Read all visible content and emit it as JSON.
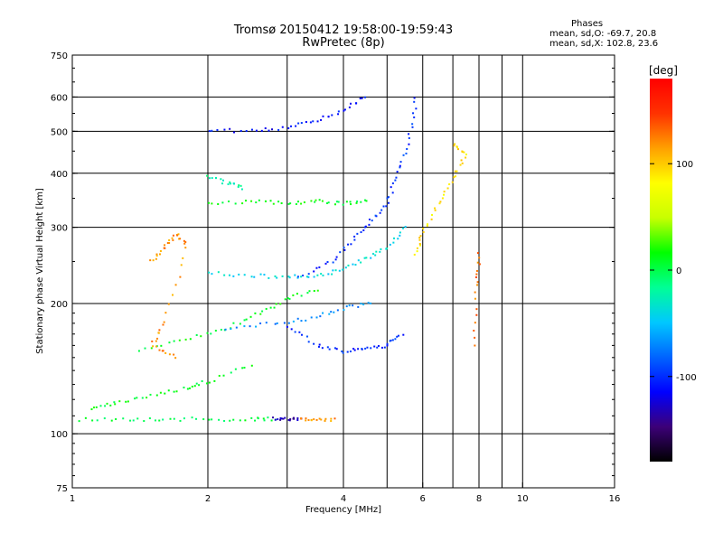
{
  "header": {
    "title_line1": "Tromsø 20150412 19:58:00-19:59:43",
    "title_line2": "RwPretec (8p)"
  },
  "phases": {
    "heading": "Phases",
    "o_line": "mean, sd,O: -69.7, 20.8",
    "x_line": "mean, sd,X: 102.8, 23.6"
  },
  "chart_data": {
    "type": "scatter",
    "xlabel": "Frequency [MHz]",
    "ylabel": "Stationary phase Virtual Height [km]",
    "xscale": "log",
    "yscale": "log",
    "xlim": [
      1,
      16
    ],
    "ylim": [
      75,
      750
    ],
    "x_ticks": [
      1,
      2,
      4,
      6,
      8,
      10,
      16
    ],
    "x_minor_ticks": [
      3,
      5,
      7,
      9
    ],
    "y_ticks": [
      75,
      100,
      200,
      300,
      400,
      500,
      600,
      750
    ],
    "grid": true,
    "colorbar": {
      "label": "[deg]",
      "range": [
        -180,
        180
      ],
      "ticks": [
        100,
        0,
        -100
      ],
      "colors": [
        "#000000",
        "#3c0078",
        "#0000ff",
        "#0064ff",
        "#00c8ff",
        "#00ff96",
        "#00ff00",
        "#c8ff00",
        "#ffff00",
        "#ffa000",
        "#ff3200",
        "#ff0000"
      ]
    },
    "traces": [
      {
        "name": "",
        "phase": 0,
        "points": [
          [
            1.0,
            108
          ],
          [
            1.3,
            108
          ],
          [
            1.6,
            108
          ],
          [
            2.0,
            108
          ],
          [
            2.5,
            108
          ],
          [
            2.8,
            108
          ]
        ]
      },
      {
        "name": "",
        "phase": -130,
        "points": [
          [
            2.8,
            108
          ],
          [
            3.0,
            108
          ],
          [
            3.2,
            108
          ]
        ]
      },
      {
        "name": "",
        "phase": 120,
        "points": [
          [
            3.2,
            108
          ],
          [
            3.5,
            108
          ],
          [
            3.8,
            108
          ]
        ]
      },
      {
        "name": "",
        "phase": 10,
        "points": [
          [
            1.1,
            115
          ],
          [
            1.25,
            118
          ],
          [
            1.5,
            122
          ],
          [
            1.8,
            128
          ],
          [
            2.0,
            132
          ],
          [
            2.5,
            145
          ]
        ]
      },
      {
        "name": "",
        "phase": 10,
        "points": [
          [
            1.4,
            155
          ],
          [
            1.8,
            165
          ],
          [
            2.2,
            175
          ],
          [
            2.6,
            190
          ],
          [
            3.0,
            205
          ],
          [
            3.5,
            215
          ]
        ]
      },
      {
        "name": "",
        "phase": -40,
        "points": [
          [
            2.0,
            235
          ],
          [
            2.5,
            232
          ],
          [
            3.0,
            230
          ],
          [
            3.5,
            232
          ],
          [
            4.0,
            240
          ],
          [
            4.5,
            255
          ],
          [
            5.0,
            270
          ],
          [
            5.5,
            300
          ]
        ]
      },
      {
        "name": "",
        "phase": -100,
        "points": [
          [
            3.0,
            178
          ],
          [
            3.5,
            160
          ],
          [
            4.0,
            155
          ],
          [
            4.5,
            157
          ],
          [
            5.0,
            160
          ],
          [
            5.4,
            170
          ]
        ]
      },
      {
        "name": "",
        "phase": -100,
        "points": [
          [
            3.2,
            230
          ],
          [
            3.8,
            250
          ],
          [
            4.2,
            280
          ],
          [
            4.6,
            310
          ],
          [
            5.0,
            340
          ],
          [
            5.3,
            400
          ],
          [
            5.6,
            480
          ],
          [
            5.8,
            600
          ]
        ]
      },
      {
        "name": "",
        "phase": -110,
        "points": [
          [
            2.0,
            505
          ],
          [
            2.5,
            500
          ],
          [
            3.0,
            510
          ],
          [
            3.5,
            530
          ],
          [
            4.0,
            560
          ],
          [
            4.5,
            600
          ]
        ]
      },
      {
        "name": "",
        "phase": 10,
        "points": [
          [
            2.0,
            340
          ],
          [
            2.5,
            345
          ],
          [
            3.0,
            340
          ],
          [
            3.5,
            345
          ],
          [
            4.0,
            340
          ],
          [
            4.5,
            345
          ]
        ]
      },
      {
        "name": "",
        "phase": 120,
        "points": [
          [
            1.5,
            250
          ],
          [
            1.6,
            270
          ],
          [
            1.7,
            290
          ],
          [
            1.8,
            270
          ],
          [
            1.6,
            180
          ],
          [
            1.5,
            160
          ],
          [
            1.7,
            150
          ]
        ]
      },
      {
        "name": "",
        "phase": 90,
        "points": [
          [
            5.8,
            260
          ],
          [
            6.0,
            290
          ],
          [
            6.5,
            340
          ],
          [
            7.0,
            390
          ],
          [
            7.5,
            440
          ],
          [
            7.0,
            470
          ]
        ]
      },
      {
        "name": "",
        "phase": 130,
        "points": [
          [
            7.8,
            160
          ],
          [
            7.9,
            220
          ],
          [
            8.0,
            260
          ]
        ]
      },
      {
        "name": "",
        "phase": -20,
        "points": [
          [
            2.0,
            395
          ],
          [
            2.2,
            380
          ],
          [
            2.4,
            370
          ]
        ]
      },
      {
        "name": "",
        "phase": -70,
        "points": [
          [
            2.2,
            175
          ],
          [
            2.8,
            180
          ],
          [
            3.4,
            185
          ],
          [
            4.0,
            195
          ],
          [
            4.6,
            200
          ]
        ]
      }
    ]
  }
}
